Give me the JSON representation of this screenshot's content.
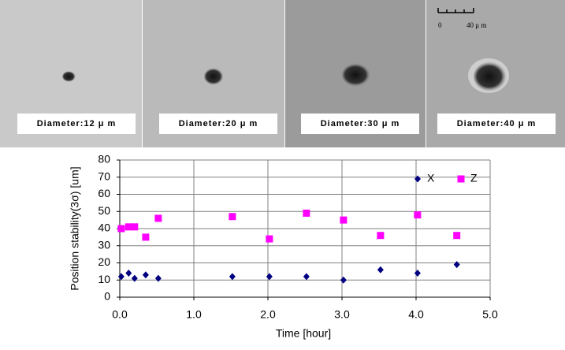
{
  "panels": [
    {
      "label": "Diameter:12 μ m"
    },
    {
      "label": "Diameter:20 μ m"
    },
    {
      "label": "Diameter:30 μ m"
    },
    {
      "label": "Diameter:40 μ m"
    }
  ],
  "scale_bar": {
    "start": "0",
    "end": "40 μ m"
  },
  "chart_data": {
    "type": "scatter",
    "x_label": "Time [hour]",
    "y_label": "Position stability(3σ) [um]",
    "series": [
      {
        "name": "X",
        "color": "#000080",
        "marker": "diamond",
        "x": [
          0.02,
          0.12,
          0.2,
          0.35,
          0.52,
          1.52,
          2.02,
          2.52,
          3.02,
          3.52,
          4.02,
          4.55
        ],
        "values": [
          12,
          14,
          11,
          13,
          11,
          12,
          12,
          12,
          10,
          16,
          14,
          19
        ]
      },
      {
        "name": "Z",
        "color": "#ff00ff",
        "marker": "square",
        "x": [
          0.02,
          0.12,
          0.2,
          0.35,
          0.52,
          1.52,
          2.02,
          2.52,
          3.02,
          3.52,
          4.02,
          4.55
        ],
        "values": [
          40,
          41,
          41,
          35,
          46,
          47,
          34,
          49,
          45,
          36,
          48,
          36
        ]
      }
    ],
    "xlim": [
      0,
      5
    ],
    "ylim": [
      0,
      80
    ],
    "xticks": [
      {
        "value": 0,
        "label": "0.0"
      },
      {
        "value": 1,
        "label": "1.0"
      },
      {
        "value": 2,
        "label": "2.0"
      },
      {
        "value": 3,
        "label": "3.0"
      },
      {
        "value": 4,
        "label": "4.0"
      },
      {
        "value": 5,
        "label": "5.0"
      }
    ],
    "yticks": [
      0,
      10,
      20,
      30,
      40,
      50,
      60,
      70,
      80
    ],
    "grid": true,
    "legend": "top-right"
  }
}
